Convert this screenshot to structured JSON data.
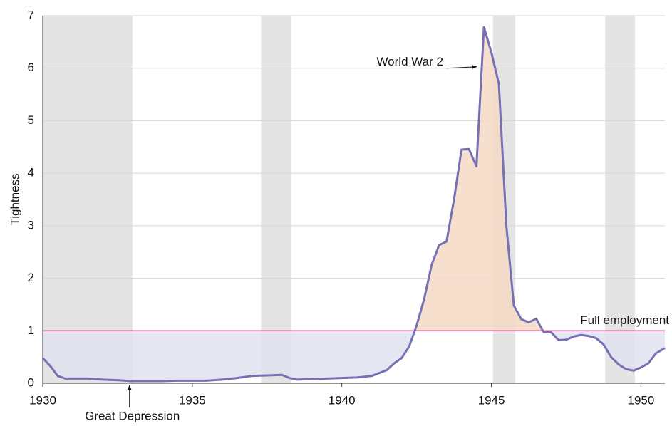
{
  "chart_data": {
    "type": "line",
    "y_label": "Tightness",
    "xlim": [
      1930,
      1950.8
    ],
    "xticks": [
      1930,
      1935,
      1940,
      1945,
      1950
    ],
    "ylim": [
      0,
      7
    ],
    "yticks": [
      0,
      1,
      2,
      3,
      4,
      5,
      6,
      7
    ],
    "grid": true,
    "shaded_periods": [
      [
        1930,
        1933
      ],
      [
        1937.3,
        1938.3
      ],
      [
        1945.05,
        1945.8
      ],
      [
        1948.8,
        1949.8
      ]
    ],
    "shade_color": "#e4e4e4",
    "reference": {
      "value": 1,
      "label": "Full employment",
      "color": "#e0559f"
    },
    "fill_above_color": "#f6d9c6",
    "fill_below_color": "#e2e2f0",
    "annotations": [
      {
        "text": "World War 2",
        "x": 1944.7,
        "y": 6.0
      },
      {
        "text": "Great Depression",
        "x": 1932.9,
        "y": 0
      }
    ],
    "series": [
      {
        "name": "Tightness",
        "color": "#7670b4",
        "x": [
          1930,
          1930.25,
          1930.5,
          1930.75,
          1931,
          1931.5,
          1932,
          1932.5,
          1933,
          1933.5,
          1934,
          1934.5,
          1935,
          1935.5,
          1936,
          1936.5,
          1937,
          1937.5,
          1938,
          1938.25,
          1938.5,
          1939,
          1939.5,
          1940,
          1940.5,
          1941,
          1941.5,
          1941.75,
          1942,
          1942.25,
          1942.5,
          1942.75,
          1943,
          1943.25,
          1943.5,
          1943.75,
          1944,
          1944.25,
          1944.5,
          1944.75,
          1945,
          1945.25,
          1945.5,
          1945.75,
          1946,
          1946.25,
          1946.5,
          1946.75,
          1947,
          1947.25,
          1947.5,
          1947.75,
          1948,
          1948.25,
          1948.5,
          1948.75,
          1949,
          1949.25,
          1949.5,
          1949.75,
          1950,
          1950.25,
          1950.5,
          1950.8
        ],
        "values": [
          0.48,
          0.33,
          0.14,
          0.09,
          0.09,
          0.09,
          0.07,
          0.06,
          0.04,
          0.04,
          0.04,
          0.05,
          0.05,
          0.05,
          0.07,
          0.1,
          0.14,
          0.15,
          0.16,
          0.1,
          0.07,
          0.08,
          0.09,
          0.1,
          0.11,
          0.14,
          0.25,
          0.38,
          0.48,
          0.7,
          1.1,
          1.6,
          2.25,
          2.63,
          2.7,
          3.5,
          4.45,
          4.46,
          4.13,
          6.78,
          6.3,
          5.7,
          3.0,
          1.48,
          1.22,
          1.16,
          1.23,
          0.97,
          0.97,
          0.82,
          0.83,
          0.89,
          0.92,
          0.9,
          0.86,
          0.74,
          0.5,
          0.36,
          0.27,
          0.24,
          0.3,
          0.38,
          0.57,
          0.67
        ]
      }
    ]
  }
}
